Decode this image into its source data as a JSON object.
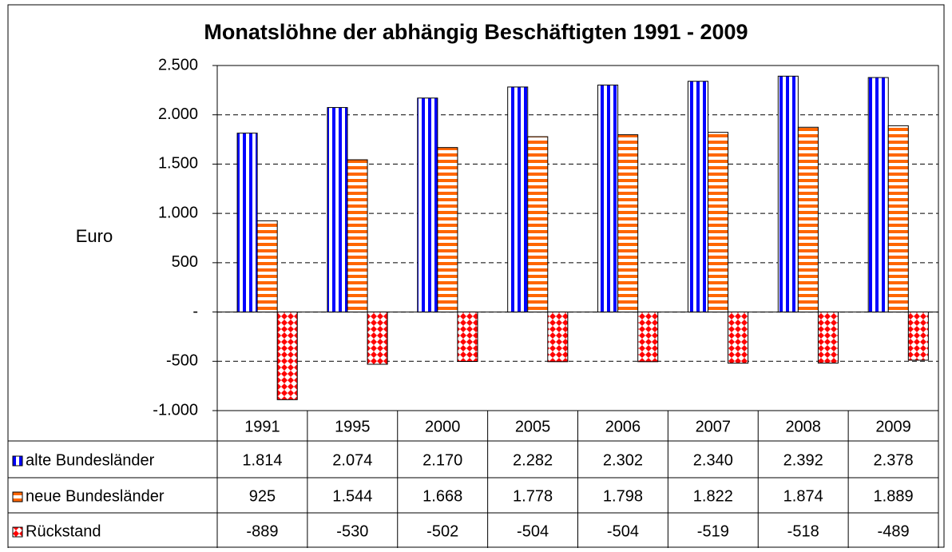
{
  "chart_data": {
    "type": "bar",
    "title": "Monatslöhne der abhängig Beschäftigten 1991 - 2009",
    "y_label": "Euro",
    "categories": [
      "1991",
      "1995",
      "2000",
      "2005",
      "2006",
      "2007",
      "2008",
      "2009"
    ],
    "series": [
      {
        "name": "alte Bundesländer",
        "color": "#0000ff",
        "pattern": "vertical",
        "values": [
          1814,
          2074,
          2170,
          2282,
          2302,
          2340,
          2392,
          2378
        ],
        "value_labels": [
          "1.814",
          "2.074",
          "2.170",
          "2.282",
          "2.302",
          "2.340",
          "2.392",
          "2.378"
        ]
      },
      {
        "name": "neue Bundesländer",
        "color": "#ff6600",
        "pattern": "horizontal",
        "values": [
          925,
          1544,
          1668,
          1778,
          1798,
          1822,
          1874,
          1889
        ],
        "value_labels": [
          "925",
          "1.544",
          "1.668",
          "1.778",
          "1.798",
          "1.822",
          "1.874",
          "1.889"
        ]
      },
      {
        "name": "Rückstand",
        "color": "#ff0000",
        "pattern": "diamond",
        "values": [
          -889,
          -530,
          -502,
          -504,
          -504,
          -519,
          -518,
          -489
        ],
        "value_labels": [
          "-889",
          "-530",
          "-502",
          "-504",
          "-504",
          "-519",
          "-518",
          "-489"
        ]
      }
    ],
    "ylim": [
      -1000,
      2500
    ],
    "yticks": [
      {
        "value": -1000,
        "label": "-1.000"
      },
      -500,
      {
        "value": 0,
        "label": "-"
      },
      500,
      {
        "value": 1000,
        "label": "1.000"
      },
      {
        "value": 1500,
        "label": "1.500"
      },
      {
        "value": 2000,
        "label": "2.000"
      },
      {
        "value": 2500,
        "label": "2.500"
      }
    ],
    "grid": true
  }
}
